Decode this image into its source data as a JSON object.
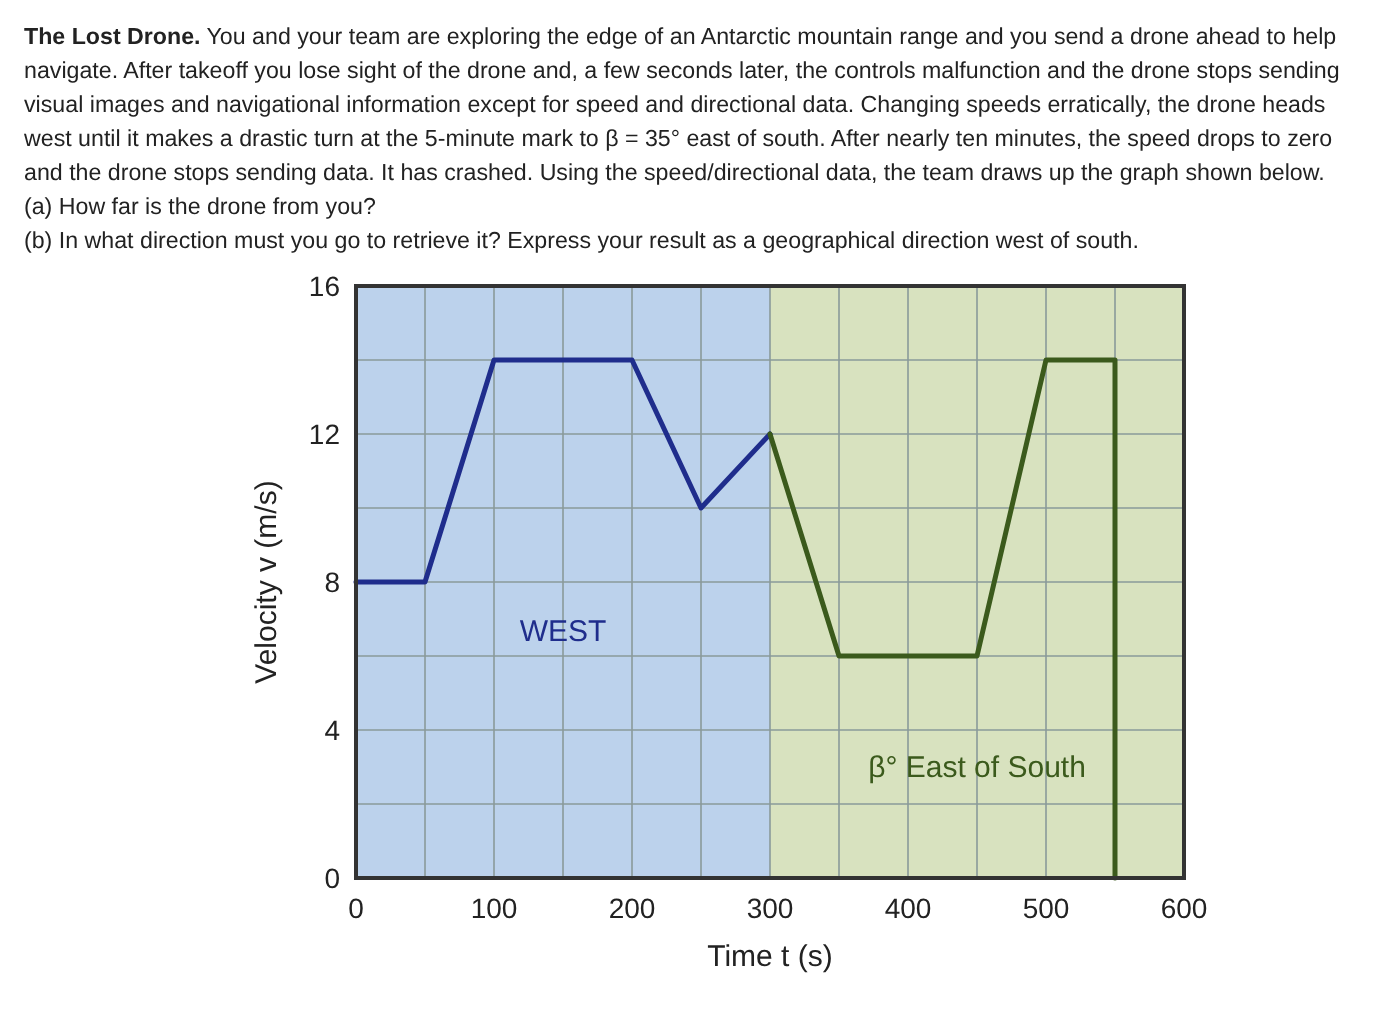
{
  "chart_data": {
    "type": "line",
    "title": "The Lost Drone.",
    "subtitle": "You and your team are exploring the edge of an Antarctic mountain range and you send a drone ahead to help navigate. After takeoff you lose sight of the drone and, a few seconds later, the controls malfunction and the drone stops sending visual images and navigational information except for speed and directional data. Changing speeds erratically, the drone heads west until it makes a drastic turn at the 5-minute mark to β = 35° east of south. After nearly ten minutes, the speed drops to zero and the drone stops sending data. It has crashed. Using the speed/directional data, the team draws up the graph shown below.",
    "annotations": [
      "(a) How far is the drone from you?",
      "(b) In what direction must you go to retrieve it? Express your result as a geographical direction west of south."
    ],
    "xlabel": "Time t (s)",
    "ylabel": "Velocity v (m/s)",
    "series": [
      {
        "color": "#1f2d8c",
        "x": [
          0,
          50,
          100,
          200,
          250,
          300
        ],
        "values": [
          8,
          8,
          14,
          14,
          10,
          12
        ]
      },
      {
        "color": "#3b5a1c",
        "x": [
          300,
          350,
          450,
          500,
          550,
          550
        ],
        "values": [
          12,
          6,
          6,
          14,
          14,
          0
        ]
      }
    ],
    "bands": [
      {
        "axis": "x",
        "from": 0,
        "to": 300,
        "label": "WEST",
        "color": "#bcd2ec"
      },
      {
        "axis": "x",
        "from": 300,
        "to": 600,
        "label": "β° East of South",
        "color": "#d8e2bf"
      }
    ],
    "xlim": [
      0,
      600
    ],
    "ylim": [
      0,
      16
    ],
    "xticks": [
      0,
      {
        "value": 50,
        "label": null
      },
      100,
      {
        "value": 150,
        "label": null
      },
      200,
      {
        "value": 250,
        "label": null
      },
      300,
      {
        "value": 350,
        "label": null
      },
      400,
      {
        "value": 450,
        "label": null
      },
      500,
      {
        "value": 550,
        "label": null
      },
      600
    ],
    "yticks": [
      0,
      {
        "value": 2,
        "label": null
      },
      4,
      {
        "value": 6,
        "label": null
      },
      8,
      {
        "value": 10,
        "label": null
      },
      12,
      {
        "value": 14,
        "label": null
      },
      16
    ],
    "grid": true,
    "marker": "none",
    "line_style": "solid"
  }
}
